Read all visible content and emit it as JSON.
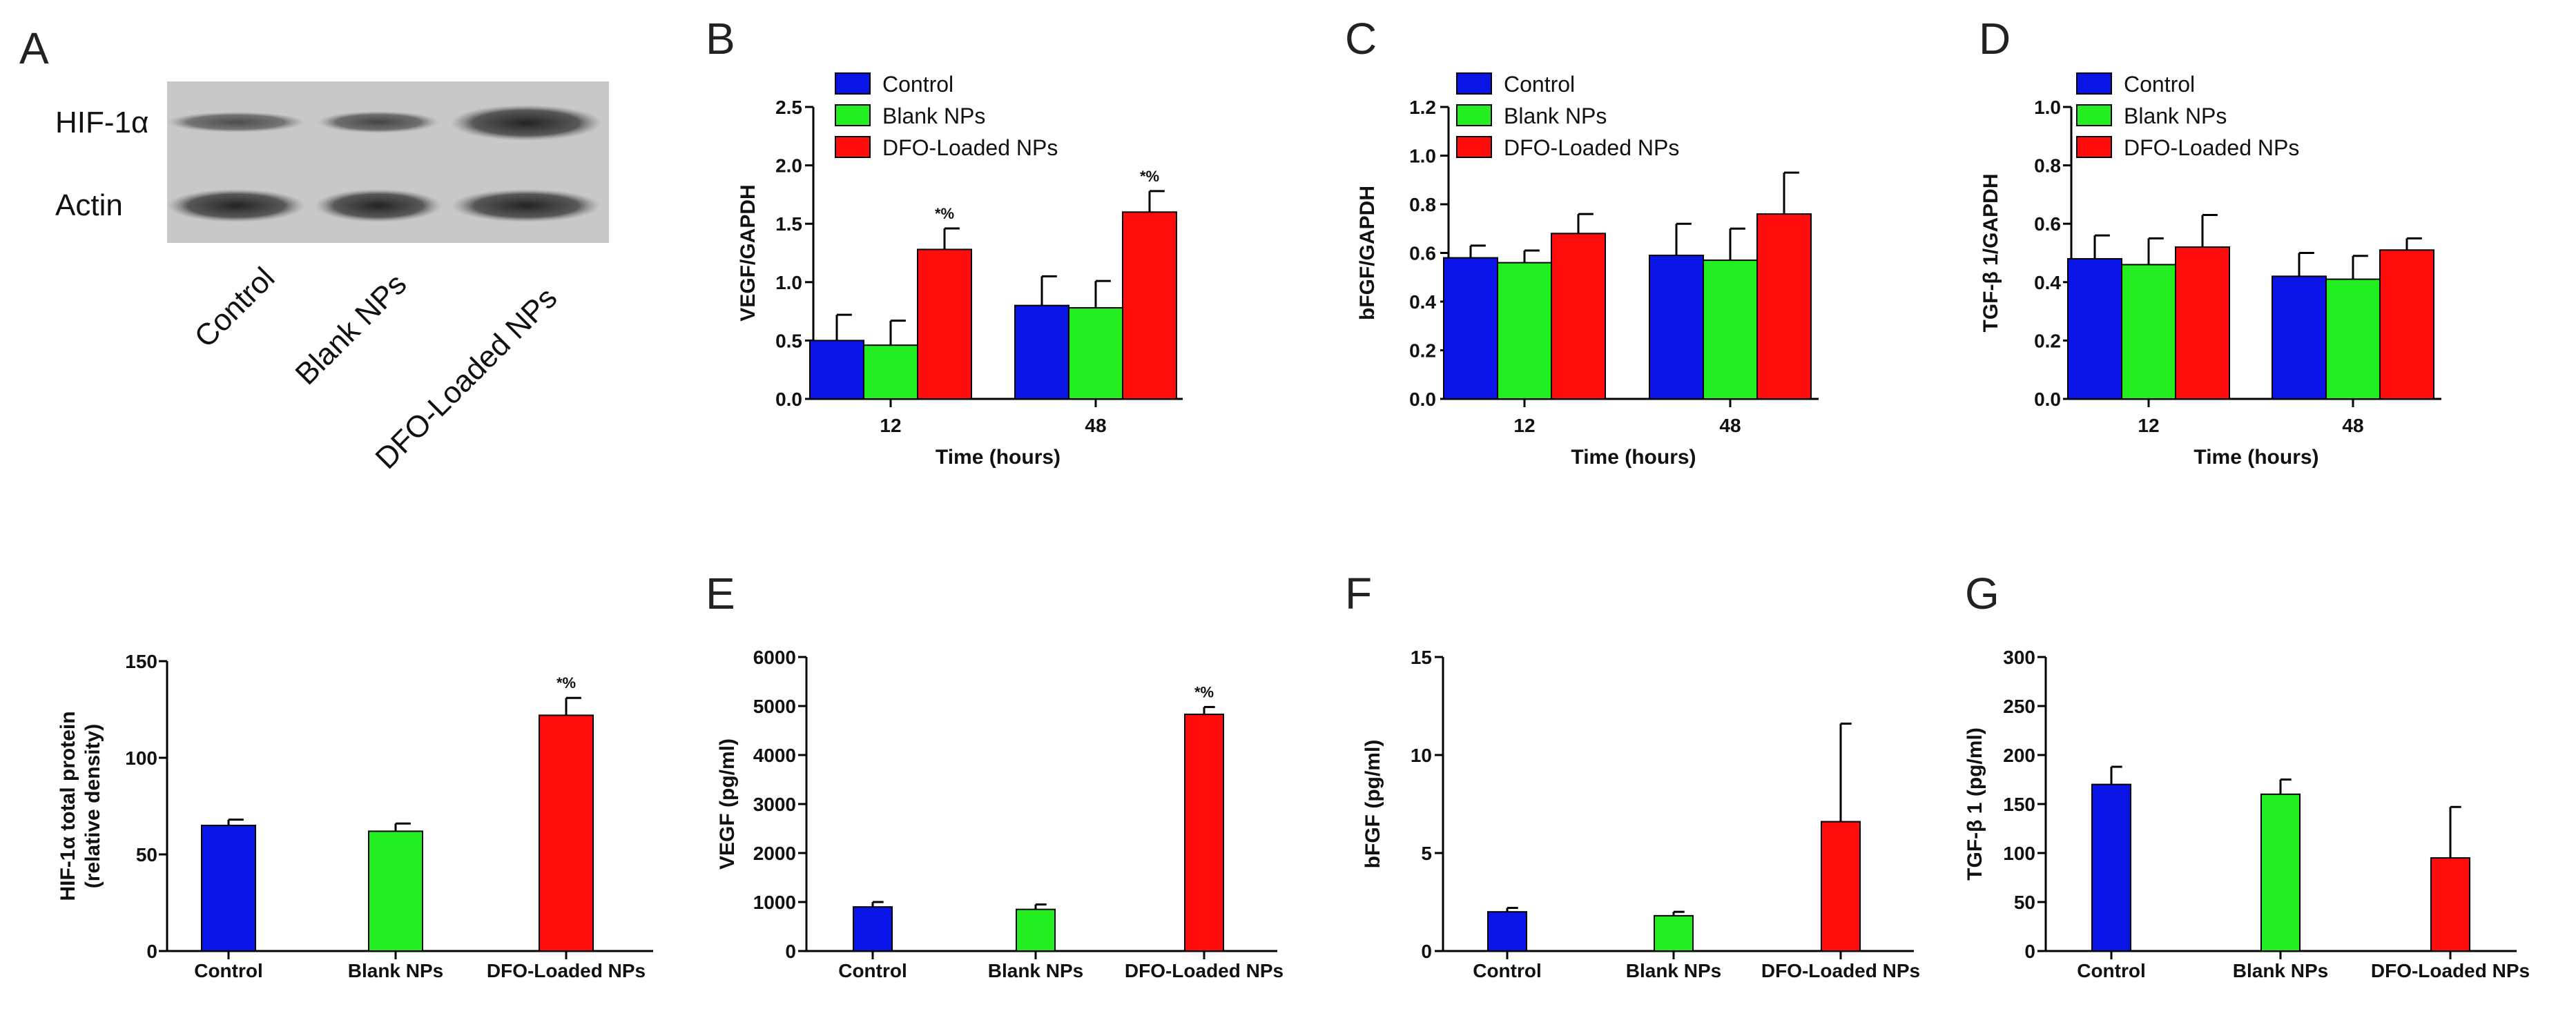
{
  "panel_letters": {
    "A": "A",
    "B": "B",
    "C": "C",
    "D": "D",
    "E": "E",
    "F": "F",
    "G": "G"
  },
  "western_blot": {
    "rows": [
      "HIF-1α",
      "Actin"
    ],
    "lanes": [
      "Control",
      "Blank NPs",
      "DFO-Loaded NPs"
    ]
  },
  "colors": {
    "Control": "#0a14e6",
    "Blank NPs": "#22ee22",
    "DFO-Loaded NPs": "#ff0d0d"
  },
  "chart_data": [
    {
      "panel": "B",
      "type": "bar",
      "title": "",
      "xlabel": "Time (hours)",
      "ylabel": "VEGF/GAPDH",
      "categories": [
        "12",
        "48"
      ],
      "series": [
        {
          "name": "Control",
          "values": [
            0.5,
            0.8
          ],
          "errors": [
            0.22,
            0.25
          ]
        },
        {
          "name": "Blank NPs",
          "values": [
            0.46,
            0.78
          ],
          "errors": [
            0.21,
            0.23
          ]
        },
        {
          "name": "DFO-Loaded NPs",
          "values": [
            1.28,
            1.6
          ],
          "errors": [
            0.18,
            0.18
          ]
        }
      ],
      "annotations": [
        {
          "category": "12",
          "series": "DFO-Loaded NPs",
          "text": "*%"
        },
        {
          "category": "48",
          "series": "DFO-Loaded NPs",
          "text": "*%"
        }
      ],
      "ylim": [
        0,
        2.5
      ],
      "yticks": [
        "0.0",
        "0.5",
        "1.0",
        "1.5",
        "2.0",
        "2.5"
      ],
      "legend": [
        "Control",
        "Blank NPs",
        "DFO-Loaded NPs"
      ],
      "legend_position": "top-left"
    },
    {
      "panel": "C",
      "type": "bar",
      "title": "",
      "xlabel": "Time (hours)",
      "ylabel": "bFGF/GAPDH",
      "categories": [
        "12",
        "48"
      ],
      "series": [
        {
          "name": "Control",
          "values": [
            0.58,
            0.59
          ],
          "errors": [
            0.05,
            0.13
          ]
        },
        {
          "name": "Blank NPs",
          "values": [
            0.56,
            0.57
          ],
          "errors": [
            0.05,
            0.13
          ]
        },
        {
          "name": "DFO-Loaded NPs",
          "values": [
            0.68,
            0.76
          ],
          "errors": [
            0.08,
            0.17
          ]
        }
      ],
      "annotations": [],
      "ylim": [
        0,
        1.2
      ],
      "yticks": [
        "0.0",
        "0.2",
        "0.4",
        "0.6",
        "0.8",
        "1.0",
        "1.2"
      ],
      "legend": [
        "Control",
        "Blank NPs",
        "DFO-Loaded NPs"
      ],
      "legend_position": "top-left"
    },
    {
      "panel": "D",
      "type": "bar",
      "title": "",
      "xlabel": "Time (hours)",
      "ylabel": "TGF-β 1/GAPDH",
      "categories": [
        "12",
        "48"
      ],
      "series": [
        {
          "name": "Control",
          "values": [
            0.48,
            0.42
          ],
          "errors": [
            0.08,
            0.08
          ]
        },
        {
          "name": "Blank NPs",
          "values": [
            0.46,
            0.41
          ],
          "errors": [
            0.09,
            0.08
          ]
        },
        {
          "name": "DFO-Loaded NPs",
          "values": [
            0.52,
            0.51
          ],
          "errors": [
            0.11,
            0.04
          ]
        }
      ],
      "annotations": [],
      "ylim": [
        0,
        1.0
      ],
      "yticks": [
        "0.0",
        "0.2",
        "0.4",
        "0.6",
        "0.8",
        "1.0"
      ],
      "legend": [
        "Control",
        "Blank NPs",
        "DFO-Loaded NPs"
      ],
      "legend_position": "top-left"
    },
    {
      "panel": "A-quant",
      "type": "bar",
      "title": "",
      "xlabel": "",
      "ylabel": "HIF-1α  total protein",
      "ylabel2": "(relative density)",
      "categories": [
        "Control",
        "Blank NPs",
        "DFO-Loaded NPs"
      ],
      "values": [
        65,
        62,
        122
      ],
      "errors": [
        3,
        4,
        9
      ],
      "annotations": [
        {
          "category": "DFO-Loaded NPs",
          "text": "*%"
        }
      ],
      "ylim": [
        0,
        150
      ],
      "yticks": [
        "0",
        "50",
        "100",
        "150"
      ]
    },
    {
      "panel": "E",
      "type": "bar",
      "title": "",
      "xlabel": "",
      "ylabel": "VEGF (pg/ml)",
      "categories": [
        "Control",
        "Blank NPs",
        "DFO-Loaded NPs"
      ],
      "values": [
        900,
        850,
        4830
      ],
      "errors": [
        100,
        100,
        150
      ],
      "annotations": [
        {
          "category": "DFO-Loaded NPs",
          "text": "*%"
        }
      ],
      "ylim": [
        0,
        6000
      ],
      "yticks": [
        "0",
        "1000",
        "2000",
        "3000",
        "4000",
        "5000",
        "6000"
      ]
    },
    {
      "panel": "F",
      "type": "bar",
      "title": "",
      "xlabel": "",
      "ylabel": "bFGF (pg/ml)",
      "categories": [
        "Control",
        "Blank NPs",
        "DFO-Loaded NPs"
      ],
      "values": [
        2.0,
        1.8,
        6.6
      ],
      "errors": [
        0.2,
        0.2,
        5.0
      ],
      "annotations": [],
      "ylim": [
        0,
        15
      ],
      "yticks": [
        "0",
        "5",
        "10",
        "15"
      ]
    },
    {
      "panel": "G",
      "type": "bar",
      "title": "",
      "xlabel": "",
      "ylabel": "TGF-β 1 (pg/ml)",
      "categories": [
        "Control",
        "Blank NPs",
        "DFO-Loaded NPs"
      ],
      "values": [
        170,
        160,
        95
      ],
      "errors": [
        18,
        15,
        52
      ],
      "annotations": [],
      "ylim": [
        0,
        300
      ],
      "yticks": [
        "0",
        "50",
        "100",
        "150",
        "200",
        "250",
        "300"
      ]
    }
  ]
}
